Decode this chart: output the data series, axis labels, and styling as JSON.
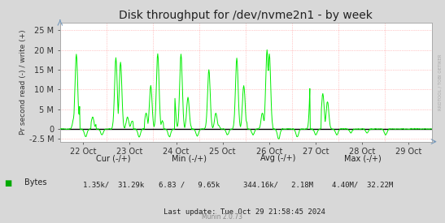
{
  "title": "Disk throughput for /dev/nvme2n1 - by week",
  "ylabel": "Pr second read (-) / write (+)",
  "xlabel_ticks": [
    "22 Oct",
    "23 Oct",
    "24 Oct",
    "25 Oct",
    "26 Oct",
    "27 Oct",
    "28 Oct",
    "29 Oct"
  ],
  "ytick_values": [
    -2500000,
    0,
    5000000,
    10000000,
    15000000,
    20000000,
    25000000
  ],
  "ytick_labels": [
    "-2.5 M",
    "0",
    "5 M",
    "10 M",
    "15 M",
    "20 M",
    "25 M"
  ],
  "ylim": [
    -3200000,
    27000000
  ],
  "xlim": [
    0,
    8
  ],
  "background_color": "#d8d8d8",
  "plot_bg_color": "#FFFFFF",
  "grid_color": "#FF9999",
  "grid_linestyle": "dotted",
  "line_color": "#00EE00",
  "zero_line_color": "#000000",
  "legend_label": "Bytes",
  "legend_color": "#00AA00",
  "cur_minus": "1.35k",
  "cur_plus": "31.29k",
  "min_minus": "6.83",
  "min_plus": "9.65k",
  "avg_minus": "344.16k",
  "avg_plus": "2.18M",
  "max_minus": "4.40M",
  "max_plus": "32.22M",
  "last_update": "Last update: Tue Oct 29 21:58:45 2024",
  "munin_label": "Munin 2.0.73",
  "rrdtool_label": "RRDTOOL / TOBI OETIKER",
  "title_fontsize": 10,
  "axis_fontsize": 7,
  "legend_fontsize": 7,
  "annotation_fontsize": 6.5,
  "num_points": 800
}
